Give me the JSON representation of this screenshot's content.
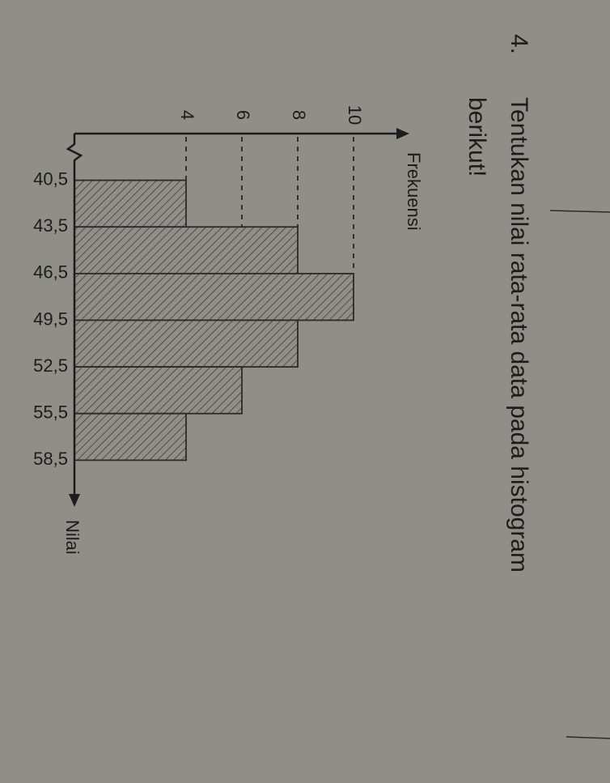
{
  "question_number": "4.",
  "question": [
    "Tentukan nilai rata-rata data pada histogram",
    "berikut!"
  ],
  "chart_data": {
    "type": "histogram",
    "x_label": "Nilai",
    "y_label": "Frekuensi",
    "bins": [
      40.5,
      43.5,
      46.5,
      49.5,
      52.5,
      55.5,
      58.5
    ],
    "values": [
      4,
      8,
      10,
      8,
      6,
      4
    ],
    "xlim": [
      37.5,
      61.5
    ],
    "xticks": [
      {
        "value": 40.5,
        "label": "40,5"
      },
      {
        "value": 43.5,
        "label": "43,5"
      },
      {
        "value": 46.5,
        "label": "46,5"
      },
      {
        "value": 49.5,
        "label": "49,5"
      },
      {
        "value": 52.5,
        "label": "52,5"
      },
      {
        "value": 55.5,
        "label": "55,5"
      },
      {
        "value": 58.5,
        "label": "58,5"
      }
    ],
    "ylim": [
      0,
      12
    ],
    "yticks": [
      4,
      6,
      8,
      10
    ],
    "grid": "dashed",
    "color": "#7f7f78"
  }
}
